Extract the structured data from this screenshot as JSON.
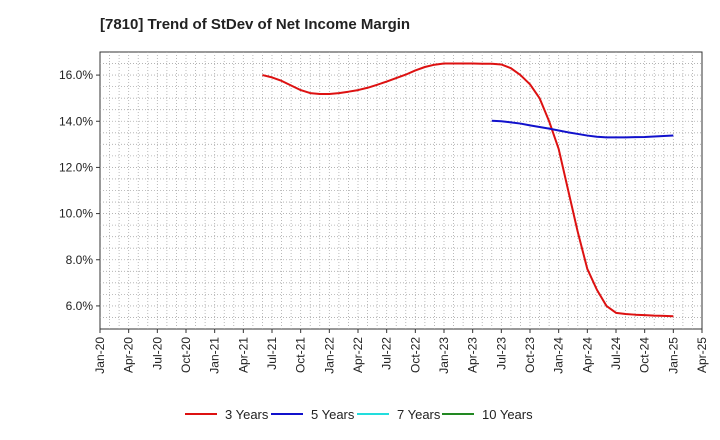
{
  "chart_data": {
    "type": "line",
    "title": "[7810]  Trend of StDev of Net Income Margin",
    "xlabel": "",
    "ylabel": "",
    "x_tick_labels": [
      "Jan-20",
      "Apr-20",
      "Jul-20",
      "Oct-20",
      "Jan-21",
      "Apr-21",
      "Jul-21",
      "Oct-21",
      "Jan-22",
      "Apr-22",
      "Jul-22",
      "Oct-22",
      "Jan-23",
      "Apr-23",
      "Jul-23",
      "Oct-23",
      "Jan-24",
      "Apr-24",
      "Jul-24",
      "Oct-24",
      "Jan-25",
      "Apr-25"
    ],
    "y_tick_labels": [
      "6.0%",
      "8.0%",
      "10.0%",
      "12.0%",
      "14.0%",
      "16.0%"
    ],
    "y_ticks": [
      6,
      8,
      10,
      12,
      14,
      16
    ],
    "ylim": [
      5.0,
      17.0
    ],
    "xlim": [
      "Jan-20",
      "Apr-25"
    ],
    "grid": true,
    "legend_position": "bottom",
    "series": [
      {
        "name": "3 Years",
        "color": "#dd1111",
        "x": [
          "Jun-21",
          "Jul-21",
          "Aug-21",
          "Sep-21",
          "Oct-21",
          "Nov-21",
          "Dec-21",
          "Jan-22",
          "Feb-22",
          "Mar-22",
          "Apr-22",
          "May-22",
          "Jun-22",
          "Jul-22",
          "Aug-22",
          "Sep-22",
          "Oct-22",
          "Nov-22",
          "Dec-22",
          "Jan-23",
          "Feb-23",
          "Mar-23",
          "Apr-23",
          "May-23",
          "Jun-23",
          "Jul-23",
          "Aug-23",
          "Sep-23",
          "Oct-23",
          "Nov-23",
          "Dec-23",
          "Jan-24",
          "Feb-24",
          "Mar-24",
          "Apr-24",
          "May-24",
          "Jun-24",
          "Jul-24",
          "Aug-24",
          "Sep-24",
          "Oct-24",
          "Nov-24",
          "Dec-24",
          "Jan-25"
        ],
        "values": [
          16.0,
          15.9,
          15.75,
          15.55,
          15.35,
          15.22,
          15.18,
          15.18,
          15.22,
          15.28,
          15.35,
          15.45,
          15.58,
          15.72,
          15.87,
          16.02,
          16.2,
          16.35,
          16.45,
          16.5,
          16.5,
          16.5,
          16.5,
          16.49,
          16.49,
          16.46,
          16.3,
          16.0,
          15.6,
          15.0,
          14.0,
          12.8,
          11.0,
          9.2,
          7.6,
          6.7,
          6.0,
          5.7,
          5.65,
          5.62,
          5.6,
          5.58,
          5.57,
          5.55
        ]
      },
      {
        "name": "5 Years",
        "color": "#1111cc",
        "x": [
          "Jun-23",
          "Jul-23",
          "Aug-23",
          "Sep-23",
          "Oct-23",
          "Nov-23",
          "Dec-23",
          "Jan-24",
          "Feb-24",
          "Mar-24",
          "Apr-24",
          "May-24",
          "Jun-24",
          "Jul-24",
          "Aug-24",
          "Sep-24",
          "Oct-24",
          "Nov-24",
          "Dec-24",
          "Jan-25"
        ],
        "values": [
          14.02,
          14.0,
          13.95,
          13.9,
          13.82,
          13.75,
          13.68,
          13.6,
          13.52,
          13.45,
          13.38,
          13.33,
          13.3,
          13.3,
          13.3,
          13.31,
          13.32,
          13.34,
          13.36,
          13.38
        ]
      },
      {
        "name": "7 Years",
        "color": "#22dddd",
        "x": [],
        "values": []
      },
      {
        "name": "10 Years",
        "color": "#228822",
        "x": [],
        "values": []
      }
    ]
  }
}
